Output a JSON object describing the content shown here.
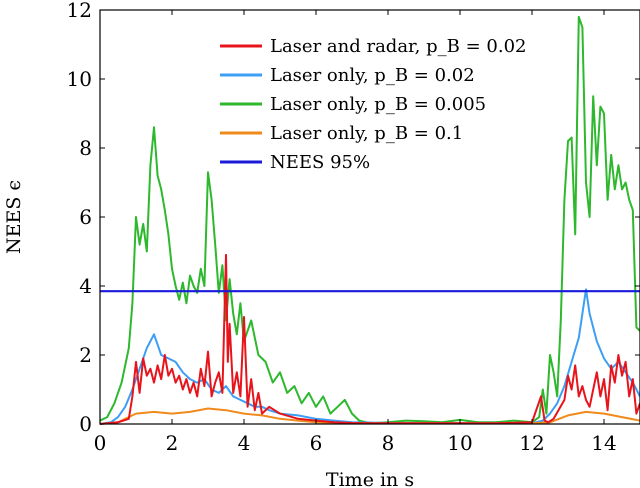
{
  "chart_data": {
    "type": "line",
    "title": "",
    "xlabel": "Time in s",
    "ylabel": "NEES ϵ",
    "xlim": [
      0,
      15
    ],
    "ylim": [
      0,
      12
    ],
    "x_ticks": [
      "0",
      "2",
      "4",
      "6",
      "8",
      "10",
      "12",
      "14"
    ],
    "y_ticks": [
      "0",
      "2",
      "4",
      "6",
      "8",
      "10",
      "12"
    ],
    "legend_position": "top-center",
    "series": [
      {
        "name": "Laser and radar, pB = 0.02",
        "legend": "Laser and radar, p_B = 0.02",
        "color": "#e8141c",
        "x": [
          0,
          0.5,
          0.8,
          0.9,
          1.0,
          1.1,
          1.2,
          1.3,
          1.4,
          1.5,
          1.6,
          1.7,
          1.8,
          1.9,
          2.0,
          2.1,
          2.2,
          2.3,
          2.4,
          2.5,
          2.6,
          2.7,
          2.8,
          2.9,
          3.0,
          3.1,
          3.2,
          3.3,
          3.4,
          3.5,
          3.55,
          3.6,
          3.7,
          3.8,
          3.9,
          4.0,
          4.1,
          4.2,
          4.3,
          4.4,
          4.5,
          4.7,
          5.0,
          5.5,
          6.0,
          6.5,
          7.0,
          7.5,
          8,
          9,
          10,
          11,
          12,
          12.25,
          12.35,
          12.45,
          12.6,
          12.9,
          13.0,
          13.1,
          13.2,
          13.3,
          13.4,
          13.5,
          13.6,
          13.7,
          13.8,
          13.9,
          14.0,
          14.1,
          14.2,
          14.3,
          14.4,
          14.5,
          14.6,
          14.7,
          14.8,
          14.9,
          15.0
        ],
        "values": [
          0,
          0.05,
          0.15,
          0.8,
          1.8,
          0.9,
          1.9,
          1.4,
          1.6,
          1.2,
          1.7,
          1.3,
          2.0,
          1.4,
          1.6,
          1.2,
          1.4,
          1.0,
          1.3,
          0.9,
          1.2,
          0.8,
          1.6,
          1.1,
          2.1,
          0.8,
          1.2,
          1.5,
          0.9,
          4.9,
          1.8,
          2.9,
          0.9,
          1.5,
          0.8,
          3.1,
          0.5,
          1.3,
          0.4,
          0.9,
          0.3,
          0.5,
          0.3,
          0.15,
          0.1,
          0.05,
          0.03,
          0.02,
          0.02,
          0.02,
          0.02,
          0.02,
          0.05,
          0.8,
          0.1,
          0.05,
          0.15,
          0.7,
          1.4,
          1.0,
          1.7,
          0.8,
          1.1,
          0.7,
          0.5,
          1.0,
          1.5,
          0.8,
          1.3,
          0.4,
          1.7,
          1.2,
          2.0,
          1.4,
          1.8,
          0.8,
          1.3,
          0.3,
          0.6
        ]
      },
      {
        "name": "Laser only, pB = 0.02",
        "legend": "Laser only, p_B = 0.02",
        "color": "#3d9ef5",
        "x": [
          0,
          0.3,
          0.5,
          0.7,
          0.9,
          1.1,
          1.3,
          1.5,
          1.7,
          1.9,
          2.1,
          2.3,
          2.5,
          2.7,
          2.9,
          3.1,
          3.3,
          3.5,
          3.7,
          3.9,
          4.1,
          4.3,
          4.5,
          4.7,
          5.0,
          5.5,
          6.0,
          6.5,
          7.0,
          8,
          9,
          10,
          11,
          12,
          12.3,
          12.5,
          12.7,
          12.9,
          13.1,
          13.3,
          13.5,
          13.6,
          13.8,
          14.0,
          14.2,
          14.4,
          14.6,
          14.8,
          15.0
        ],
        "values": [
          0,
          0.05,
          0.2,
          0.5,
          1.0,
          1.6,
          2.2,
          2.6,
          2.0,
          1.9,
          1.8,
          1.5,
          1.3,
          1.2,
          1.3,
          1.0,
          0.9,
          1.1,
          0.8,
          0.7,
          0.6,
          0.5,
          0.5,
          0.4,
          0.3,
          0.25,
          0.15,
          0.1,
          0.05,
          0.03,
          0.02,
          0.02,
          0.02,
          0.02,
          0.1,
          0.3,
          0.6,
          1.1,
          1.8,
          2.5,
          3.9,
          3.2,
          2.4,
          1.9,
          1.6,
          1.8,
          1.5,
          1.2,
          0.8
        ]
      },
      {
        "name": "Laser only, pB = 0.005",
        "legend": "Laser only, p_B = 0.005",
        "color": "#2db82d",
        "x": [
          0,
          0.2,
          0.4,
          0.6,
          0.8,
          0.9,
          1.0,
          1.1,
          1.2,
          1.3,
          1.4,
          1.5,
          1.6,
          1.7,
          1.8,
          1.9,
          2.0,
          2.1,
          2.2,
          2.3,
          2.4,
          2.5,
          2.6,
          2.7,
          2.8,
          2.9,
          3.0,
          3.1,
          3.2,
          3.3,
          3.4,
          3.5,
          3.6,
          3.7,
          3.8,
          3.9,
          4.0,
          4.2,
          4.4,
          4.6,
          4.8,
          5.0,
          5.2,
          5.4,
          5.6,
          5.8,
          6.0,
          6.2,
          6.4,
          6.6,
          6.8,
          7.0,
          7.2,
          7.4,
          7.6,
          8.0,
          8.5,
          9.0,
          9.5,
          10.0,
          10.5,
          11.0,
          11.5,
          12.0,
          12.2,
          12.3,
          12.4,
          12.5,
          12.6,
          12.7,
          12.8,
          12.9,
          13.0,
          13.1,
          13.2,
          13.3,
          13.4,
          13.5,
          13.6,
          13.7,
          13.8,
          13.9,
          14.0,
          14.1,
          14.2,
          14.3,
          14.4,
          14.5,
          14.6,
          14.7,
          14.8,
          14.9,
          15.0
        ],
        "values": [
          0.1,
          0.2,
          0.6,
          1.2,
          2.2,
          3.5,
          6.0,
          5.2,
          5.8,
          5.0,
          7.5,
          8.6,
          7.2,
          6.8,
          6.2,
          5.5,
          4.5,
          4.0,
          3.6,
          4.1,
          3.5,
          4.3,
          4.0,
          3.8,
          4.5,
          4.0,
          7.3,
          6.5,
          5.2,
          3.8,
          4.6,
          3.0,
          4.2,
          3.2,
          2.6,
          3.5,
          2.4,
          3.0,
          2.0,
          1.8,
          1.2,
          1.5,
          0.9,
          1.1,
          0.6,
          0.9,
          0.5,
          0.8,
          0.3,
          0.5,
          0.7,
          0.3,
          0.1,
          0.05,
          0.03,
          0.05,
          0.1,
          0.08,
          0.05,
          0.12,
          0.05,
          0.05,
          0.1,
          0.05,
          0.2,
          1.0,
          0.3,
          2.0,
          1.5,
          0.8,
          3.0,
          6.5,
          8.2,
          8.3,
          5.5,
          11.8,
          11.5,
          7.0,
          6.0,
          9.5,
          7.5,
          9.2,
          9.0,
          6.5,
          7.8,
          6.8,
          7.5,
          6.8,
          7.0,
          6.5,
          6.2,
          2.8,
          2.7
        ]
      },
      {
        "name": "Laser only, pB = 0.1",
        "legend": "Laser only, p_B = 0.1",
        "color": "#f08a1c",
        "x": [
          0,
          0.5,
          1.0,
          1.5,
          2.0,
          2.5,
          3.0,
          3.5,
          4.0,
          4.5,
          5.0,
          5.5,
          6.0,
          7.0,
          8,
          9,
          10,
          11,
          12,
          12.5,
          13.0,
          13.5,
          14.0,
          14.5,
          15.0
        ],
        "values": [
          0,
          0.05,
          0.3,
          0.35,
          0.3,
          0.35,
          0.45,
          0.4,
          0.3,
          0.25,
          0.15,
          0.1,
          0.05,
          0.02,
          0.02,
          0.02,
          0.02,
          0.02,
          0.02,
          0.05,
          0.25,
          0.35,
          0.3,
          0.2,
          0.1
        ]
      },
      {
        "name": "NEES 95%",
        "legend": "NEES 95%",
        "color": "#1a1adb",
        "x": [
          0,
          15
        ],
        "values": [
          3.85,
          3.85
        ]
      }
    ]
  }
}
